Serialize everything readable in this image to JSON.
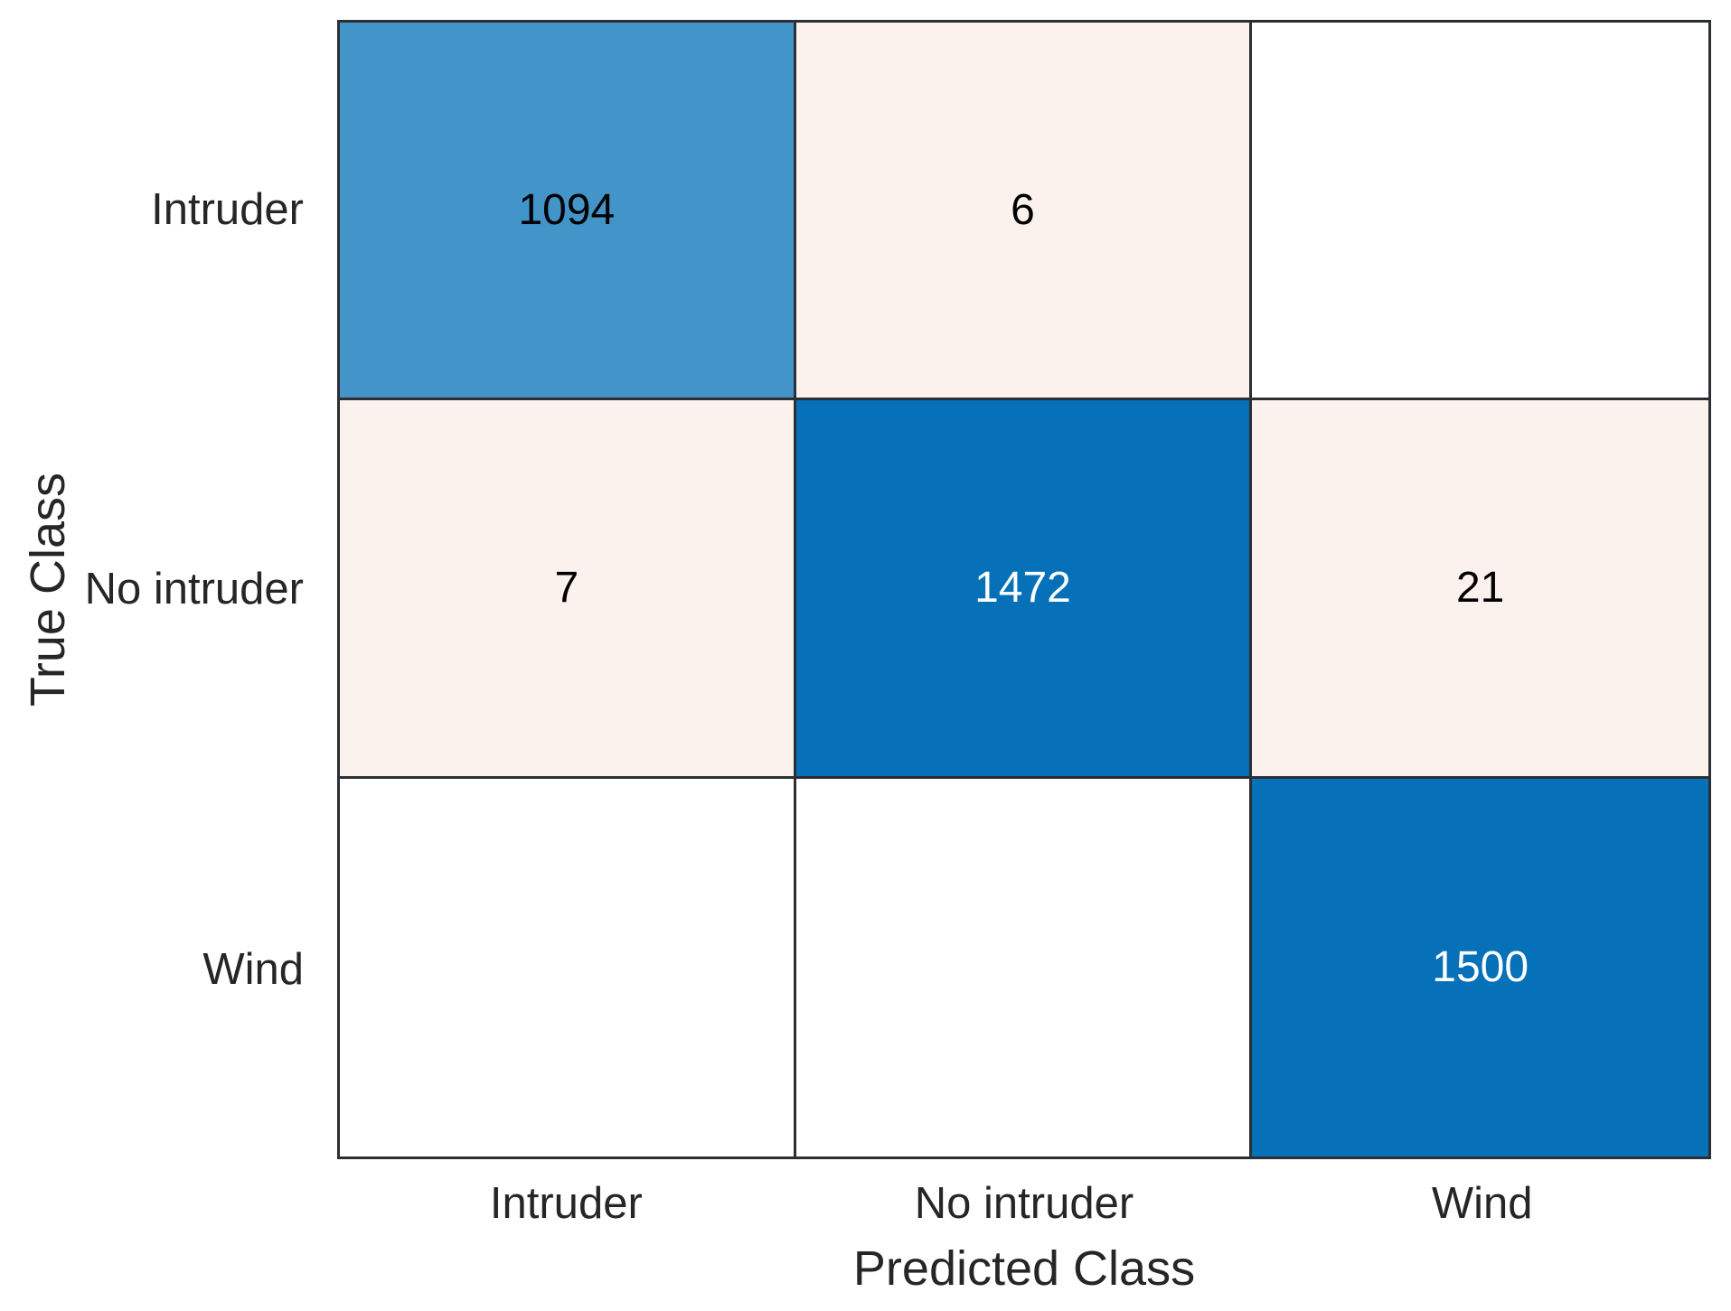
{
  "chart_data": {
    "type": "heatmap",
    "subtype": "confusion-matrix",
    "title": "",
    "xlabel": "Predicted Class",
    "ylabel": "True Class",
    "x_categories": [
      "Intruder",
      "No intruder",
      "Wind"
    ],
    "y_categories": [
      "Intruder",
      "No intruder",
      "Wind"
    ],
    "matrix": [
      [
        1094,
        6,
        null
      ],
      [
        7,
        1472,
        21
      ],
      [
        null,
        null,
        1500
      ]
    ],
    "cell_bg": [
      [
        "#4294c9",
        "#fcf2ed",
        "#ffffff"
      ],
      [
        "#fcf2ed",
        "#0671b8",
        "#fcf2ed"
      ],
      [
        "#ffffff",
        "#ffffff",
        "#0671b8"
      ]
    ],
    "cell_fg": [
      [
        "#000000",
        "#000000",
        "#000000"
      ],
      [
        "#000000",
        "#ffffff",
        "#000000"
      ],
      [
        "#000000",
        "#000000",
        "#ffffff"
      ]
    ],
    "grid_line_color": "#2b2f33",
    "layout": {
      "grid_on": true,
      "legend": "none",
      "axes": "categorical-both"
    }
  }
}
